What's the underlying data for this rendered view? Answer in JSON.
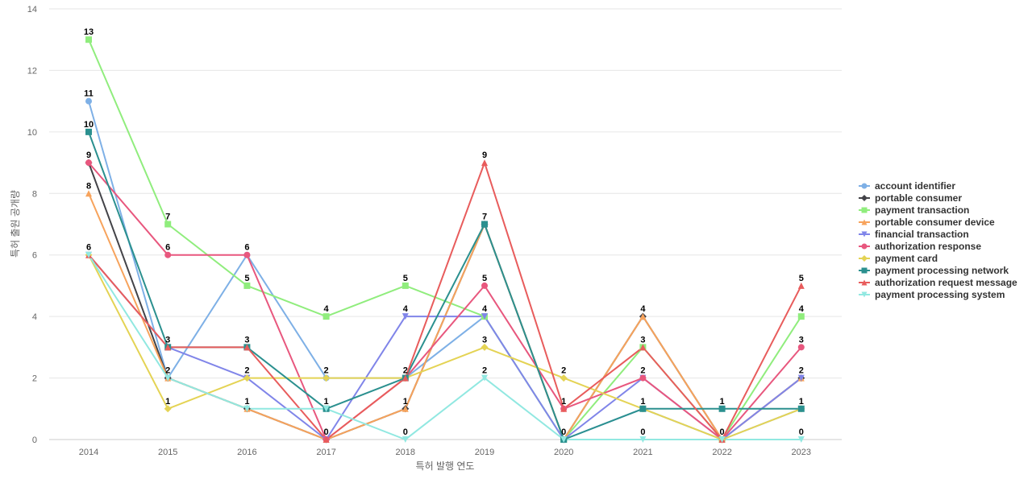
{
  "chart_data": {
    "type": "line",
    "title": "",
    "xlabel": "특허 발행 연도",
    "ylabel": "특허 출원 공개량",
    "ylim": [
      0,
      14
    ],
    "yticks": [
      0,
      2,
      4,
      6,
      8,
      10,
      12,
      14
    ],
    "categories": [
      "2014",
      "2015",
      "2016",
      "2017",
      "2018",
      "2019",
      "2020",
      "2021",
      "2022",
      "2023"
    ],
    "legend_position": "right",
    "grid": true,
    "series": [
      {
        "name": "account identifier",
        "color": "#7eb0e6",
        "marker": "circle",
        "values": [
          11,
          2,
          6,
          2,
          2,
          4,
          0,
          1,
          0,
          1
        ]
      },
      {
        "name": "portable consumer",
        "color": "#434348",
        "marker": "diamond",
        "values": [
          9,
          2,
          1,
          0,
          1,
          7,
          0,
          4,
          0,
          2
        ]
      },
      {
        "name": "payment transaction",
        "color": "#90ed7d",
        "marker": "square",
        "values": [
          13,
          7,
          5,
          4,
          5,
          4,
          0,
          3,
          0,
          4
        ]
      },
      {
        "name": "portable consumer device",
        "color": "#f7a35c",
        "marker": "triangle",
        "values": [
          8,
          2,
          1,
          0,
          1,
          7,
          0,
          4,
          0,
          2
        ]
      },
      {
        "name": "financial transaction",
        "color": "#8085e9",
        "marker": "triangle-down",
        "values": [
          6,
          3,
          2,
          0,
          4,
          4,
          0,
          2,
          0,
          2
        ]
      },
      {
        "name": "authorization response",
        "color": "#e8577e",
        "marker": "circle",
        "values": [
          9,
          6,
          6,
          0,
          2,
          5,
          1,
          2,
          0,
          3
        ]
      },
      {
        "name": "payment card",
        "color": "#e4d354",
        "marker": "diamond",
        "values": [
          6,
          1,
          2,
          2,
          2,
          3,
          2,
          1,
          0,
          1
        ]
      },
      {
        "name": "payment processing network",
        "color": "#2b908f",
        "marker": "square",
        "values": [
          10,
          3,
          3,
          1,
          2,
          7,
          0,
          1,
          1,
          1
        ]
      },
      {
        "name": "authorization request message",
        "color": "#e85c5c",
        "marker": "triangle",
        "values": [
          6,
          3,
          3,
          0,
          2,
          9,
          1,
          3,
          0,
          5
        ]
      },
      {
        "name": "payment processing system",
        "color": "#91e8e1",
        "marker": "triangle-down",
        "values": [
          6,
          2,
          1,
          1,
          0,
          2,
          0,
          0,
          0,
          0
        ]
      }
    ],
    "point_labels": [
      {
        "x": "2014",
        "y": 13,
        "text": "13"
      },
      {
        "x": "2014",
        "y": 11,
        "text": "11"
      },
      {
        "x": "2014",
        "y": 10,
        "text": "10"
      },
      {
        "x": "2014",
        "y": 9,
        "text": "9"
      },
      {
        "x": "2014",
        "y": 8,
        "text": "8"
      },
      {
        "x": "2014",
        "y": 6,
        "text": "6"
      },
      {
        "x": "2015",
        "y": 7,
        "text": "7"
      },
      {
        "x": "2015",
        "y": 6,
        "text": "6"
      },
      {
        "x": "2015",
        "y": 3,
        "text": "3"
      },
      {
        "x": "2015",
        "y": 2,
        "text": "2"
      },
      {
        "x": "2015",
        "y": 1,
        "text": "1"
      },
      {
        "x": "2016",
        "y": 6,
        "text": "6"
      },
      {
        "x": "2016",
        "y": 5,
        "text": "5"
      },
      {
        "x": "2016",
        "y": 3,
        "text": "3"
      },
      {
        "x": "2016",
        "y": 2,
        "text": "2"
      },
      {
        "x": "2016",
        "y": 1,
        "text": "1"
      },
      {
        "x": "2017",
        "y": 4,
        "text": "4"
      },
      {
        "x": "2017",
        "y": 2,
        "text": "2"
      },
      {
        "x": "2017",
        "y": 1,
        "text": "1"
      },
      {
        "x": "2017",
        "y": 0,
        "text": "0"
      },
      {
        "x": "2018",
        "y": 5,
        "text": "5"
      },
      {
        "x": "2018",
        "y": 4,
        "text": "4"
      },
      {
        "x": "2018",
        "y": 2,
        "text": "2"
      },
      {
        "x": "2018",
        "y": 1,
        "text": "1"
      },
      {
        "x": "2018",
        "y": 0,
        "text": "0"
      },
      {
        "x": "2019",
        "y": 9,
        "text": "9"
      },
      {
        "x": "2019",
        "y": 7,
        "text": "7"
      },
      {
        "x": "2019",
        "y": 5,
        "text": "5"
      },
      {
        "x": "2019",
        "y": 4,
        "text": "4"
      },
      {
        "x": "2019",
        "y": 3,
        "text": "3"
      },
      {
        "x": "2019",
        "y": 2,
        "text": "2"
      },
      {
        "x": "2020",
        "y": 2,
        "text": "2"
      },
      {
        "x": "2020",
        "y": 1,
        "text": "1"
      },
      {
        "x": "2020",
        "y": 0,
        "text": "0"
      },
      {
        "x": "2021",
        "y": 4,
        "text": "4"
      },
      {
        "x": "2021",
        "y": 3,
        "text": "3"
      },
      {
        "x": "2021",
        "y": 2,
        "text": "2"
      },
      {
        "x": "2021",
        "y": 1,
        "text": "1"
      },
      {
        "x": "2021",
        "y": 0,
        "text": "0"
      },
      {
        "x": "2022",
        "y": 1,
        "text": "1"
      },
      {
        "x": "2022",
        "y": 0,
        "text": "0"
      },
      {
        "x": "2023",
        "y": 5,
        "text": "5"
      },
      {
        "x": "2023",
        "y": 4,
        "text": "4"
      },
      {
        "x": "2023",
        "y": 3,
        "text": "3"
      },
      {
        "x": "2023",
        "y": 2,
        "text": "2"
      },
      {
        "x": "2023",
        "y": 1,
        "text": "1"
      },
      {
        "x": "2023",
        "y": 0,
        "text": "0"
      }
    ]
  }
}
